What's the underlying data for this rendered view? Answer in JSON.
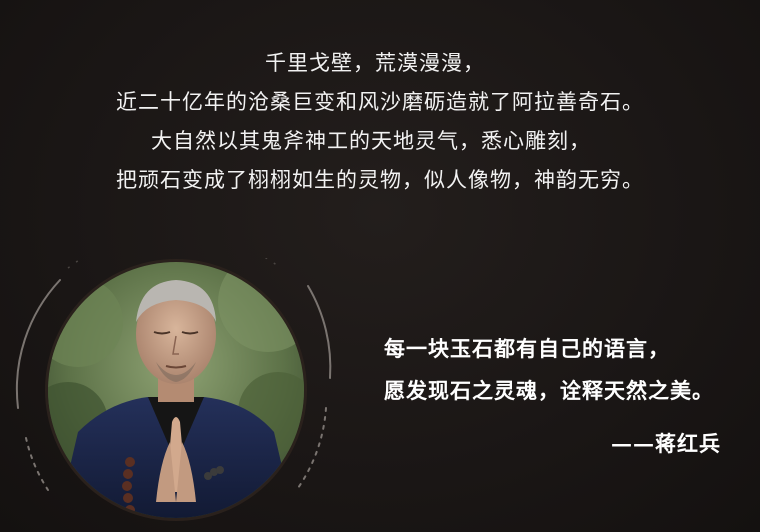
{
  "intro": {
    "lines": [
      "千里戈壁，荒漠漫漫，",
      "近二十亿年的沧桑巨变和风沙磨砺造就了阿拉善奇石。",
      "大自然以其鬼斧神工的天地灵气，悉心雕刻，",
      "把顽石变成了栩栩如生的灵物，似人像物，神韵无穷。"
    ]
  },
  "quote": {
    "lines": [
      "每一块玉石都有自己的语言，",
      "愿发现石之灵魂，诠释天然之美。"
    ],
    "author": "——蒋红兵"
  },
  "colors": {
    "background": "#1b1716",
    "text": "#ffffff",
    "portrait_ring": "#3a2c24",
    "robe": "#1f2a4a"
  }
}
